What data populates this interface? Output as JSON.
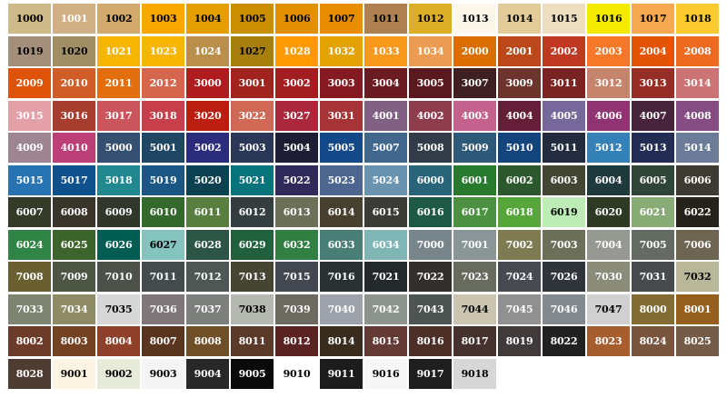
{
  "swatches": [
    {
      "code": "1000",
      "color": "#cdba88",
      "text": "#000000"
    },
    {
      "code": "1001",
      "color": "#d0b084",
      "text": "#ffffff"
    },
    {
      "code": "1002",
      "color": "#d2aa6d",
      "text": "#000000"
    },
    {
      "code": "1003",
      "color": "#f9a800",
      "text": "#000000"
    },
    {
      "code": "1004",
      "color": "#e49e00",
      "text": "#000000"
    },
    {
      "code": "1005",
      "color": "#cb8e00",
      "text": "#000000"
    },
    {
      "code": "1006",
      "color": "#e29000",
      "text": "#000000"
    },
    {
      "code": "1007",
      "color": "#e88c00",
      "text": "#000000"
    },
    {
      "code": "1011",
      "color": "#af8050",
      "text": "#000000"
    },
    {
      "code": "1012",
      "color": "#ddaf27",
      "text": "#000000"
    },
    {
      "code": "1013",
      "color": "#fbf7ea",
      "text": "#000000"
    },
    {
      "code": "1014",
      "color": "#e1cc99",
      "text": "#000000"
    },
    {
      "code": "1015",
      "color": "#eddec1",
      "text": "#000000"
    },
    {
      "code": "1016",
      "color": "#f4ea00",
      "text": "#000000"
    },
    {
      "code": "1017",
      "color": "#f6a950",
      "text": "#000000"
    },
    {
      "code": "1018",
      "color": "#faca30",
      "text": "#000000"
    },
    {
      "code": "1019",
      "color": "#a48f7a",
      "text": "#000000"
    },
    {
      "code": "1020",
      "color": "#a08f65",
      "text": "#000000"
    },
    {
      "code": "1021",
      "color": "#f6b600",
      "text": "#ffffff"
    },
    {
      "code": "1023",
      "color": "#f7b500",
      "text": "#ffffff"
    },
    {
      "code": "1024",
      "color": "#ba8f4c",
      "text": "#ffffff"
    },
    {
      "code": "1027",
      "color": "#a77f0e",
      "text": "#000000"
    },
    {
      "code": "1028",
      "color": "#ff9b00",
      "text": "#ffffff"
    },
    {
      "code": "1032",
      "color": "#e2a300",
      "text": "#ffffff"
    },
    {
      "code": "1033",
      "color": "#f99a1c",
      "text": "#ffffff"
    },
    {
      "code": "1034",
      "color": "#eb9c52",
      "text": "#ffffff"
    },
    {
      "code": "2000",
      "color": "#da6e00",
      "text": "#ffffff"
    },
    {
      "code": "2001",
      "color": "#ba481b",
      "text": "#ffffff"
    },
    {
      "code": "2002",
      "color": "#bf3922",
      "text": "#ffffff"
    },
    {
      "code": "2003",
      "color": "#f67828",
      "text": "#ffffff"
    },
    {
      "code": "2004",
      "color": "#e25303",
      "text": "#ffffff"
    },
    {
      "code": "2008",
      "color": "#ed6b21",
      "text": "#ffffff"
    },
    {
      "code": "2009",
      "color": "#de5307",
      "text": "#ffffff"
    },
    {
      "code": "2010",
      "color": "#d05d28",
      "text": "#ffffff"
    },
    {
      "code": "2011",
      "color": "#e26e0e",
      "text": "#ffffff"
    },
    {
      "code": "2012",
      "color": "#d5654d",
      "text": "#ffffff"
    },
    {
      "code": "3000",
      "color": "#af1c1f",
      "text": "#ffffff"
    },
    {
      "code": "3001",
      "color": "#a2231d",
      "text": "#ffffff"
    },
    {
      "code": "3002",
      "color": "#a21d1f",
      "text": "#ffffff"
    },
    {
      "code": "3003",
      "color": "#861a22",
      "text": "#ffffff"
    },
    {
      "code": "3004",
      "color": "#6b1c23",
      "text": "#ffffff"
    },
    {
      "code": "3005",
      "color": "#59191f",
      "text": "#ffffff"
    },
    {
      "code": "3007",
      "color": "#3e2022",
      "text": "#ffffff"
    },
    {
      "code": "3009",
      "color": "#6d342d",
      "text": "#ffffff"
    },
    {
      "code": "3011",
      "color": "#792423",
      "text": "#ffffff"
    },
    {
      "code": "3012",
      "color": "#c6846d",
      "text": "#ffffff"
    },
    {
      "code": "3013",
      "color": "#972e25",
      "text": "#ffffff"
    },
    {
      "code": "3014",
      "color": "#cb7375",
      "text": "#ffffff"
    },
    {
      "code": "3015",
      "color": "#e4a0a7",
      "text": "#ffffff"
    },
    {
      "code": "3016",
      "color": "#a63d2f",
      "text": "#ffffff"
    },
    {
      "code": "3017",
      "color": "#cb555d",
      "text": "#ffffff"
    },
    {
      "code": "3018",
      "color": "#c73f4a",
      "text": "#ffffff"
    },
    {
      "code": "3020",
      "color": "#bb1e10",
      "text": "#ffffff"
    },
    {
      "code": "3022",
      "color": "#cf6955",
      "text": "#ffffff"
    },
    {
      "code": "3027",
      "color": "#ab273c",
      "text": "#ffffff"
    },
    {
      "code": "3031",
      "color": "#a63437",
      "text": "#ffffff"
    },
    {
      "code": "4001",
      "color": "#816183",
      "text": "#ffffff"
    },
    {
      "code": "4002",
      "color": "#8d3c4b",
      "text": "#ffffff"
    },
    {
      "code": "4003",
      "color": "#c4618c",
      "text": "#ffffff"
    },
    {
      "code": "4004",
      "color": "#651e38",
      "text": "#ffffff"
    },
    {
      "code": "4005",
      "color": "#76689a",
      "text": "#ffffff"
    },
    {
      "code": "4006",
      "color": "#903373",
      "text": "#ffffff"
    },
    {
      "code": "4007",
      "color": "#47243c",
      "text": "#ffffff"
    },
    {
      "code": "4008",
      "color": "#844c82",
      "text": "#ffffff"
    },
    {
      "code": "4009",
      "color": "#9d8692",
      "text": "#ffffff"
    },
    {
      "code": "4010",
      "color": "#bc4077",
      "text": "#ffffff"
    },
    {
      "code": "5000",
      "color": "#344f6f",
      "text": "#ffffff"
    },
    {
      "code": "5001",
      "color": "#1f4764",
      "text": "#ffffff"
    },
    {
      "code": "5002",
      "color": "#2b2c7c",
      "text": "#ffffff"
    },
    {
      "code": "5003",
      "color": "#2a3756",
      "text": "#ffffff"
    },
    {
      "code": "5004",
      "color": "#1d1e33",
      "text": "#ffffff"
    },
    {
      "code": "5005",
      "color": "#154889",
      "text": "#ffffff"
    },
    {
      "code": "5007",
      "color": "#41678d",
      "text": "#ffffff"
    },
    {
      "code": "5008",
      "color": "#313c48",
      "text": "#ffffff"
    },
    {
      "code": "5009",
      "color": "#2e5978",
      "text": "#ffffff"
    },
    {
      "code": "5010",
      "color": "#13447c",
      "text": "#ffffff"
    },
    {
      "code": "5011",
      "color": "#232c3f",
      "text": "#ffffff"
    },
    {
      "code": "5012",
      "color": "#3481b8",
      "text": "#ffffff"
    },
    {
      "code": "5013",
      "color": "#232d53",
      "text": "#ffffff"
    },
    {
      "code": "5014",
      "color": "#6c7c98",
      "text": "#ffffff"
    },
    {
      "code": "5015",
      "color": "#2874b2",
      "text": "#ffffff"
    },
    {
      "code": "5017",
      "color": "#0e518d",
      "text": "#ffffff"
    },
    {
      "code": "5018",
      "color": "#21888f",
      "text": "#ffffff"
    },
    {
      "code": "5019",
      "color": "#1a5784",
      "text": "#ffffff"
    },
    {
      "code": "5020",
      "color": "#0b4151",
      "text": "#ffffff"
    },
    {
      "code": "5021",
      "color": "#07737a",
      "text": "#ffffff"
    },
    {
      "code": "5022",
      "color": "#2f2a5a",
      "text": "#ffffff"
    },
    {
      "code": "5023",
      "color": "#4d668e",
      "text": "#ffffff"
    },
    {
      "code": "5024",
      "color": "#6a93b0",
      "text": "#ffffff"
    },
    {
      "code": "6000",
      "color": "#296478",
      "text": "#ffffff"
    },
    {
      "code": "6001",
      "color": "#287b2e",
      "text": "#ffffff"
    },
    {
      "code": "6002",
      "color": "#2d572c",
      "text": "#ffffff"
    },
    {
      "code": "6003",
      "color": "#424632",
      "text": "#ffffff"
    },
    {
      "code": "6004",
      "color": "#1f3a3d",
      "text": "#ffffff"
    },
    {
      "code": "6005",
      "color": "#2f4538",
      "text": "#ffffff"
    },
    {
      "code": "6006",
      "color": "#3e3b32",
      "text": "#ffffff"
    },
    {
      "code": "6007",
      "color": "#343b29",
      "text": "#ffffff"
    },
    {
      "code": "6008",
      "color": "#39352a",
      "text": "#ffffff"
    },
    {
      "code": "6009",
      "color": "#31372b",
      "text": "#ffffff"
    },
    {
      "code": "6010",
      "color": "#35682d",
      "text": "#ffffff"
    },
    {
      "code": "6011",
      "color": "#587f40",
      "text": "#ffffff"
    },
    {
      "code": "6012",
      "color": "#343e40",
      "text": "#ffffff"
    },
    {
      "code": "6013",
      "color": "#6c7059",
      "text": "#ffffff"
    },
    {
      "code": "6014",
      "color": "#47402e",
      "text": "#ffffff"
    },
    {
      "code": "6015",
      "color": "#3b3c36",
      "text": "#ffffff"
    },
    {
      "code": "6016",
      "color": "#1e5945",
      "text": "#ffffff"
    },
    {
      "code": "6017",
      "color": "#4c9141",
      "text": "#ffffff"
    },
    {
      "code": "6018",
      "color": "#57a639",
      "text": "#ffffff"
    },
    {
      "code": "6019",
      "color": "#bdecb6",
      "text": "#000000"
    },
    {
      "code": "6020",
      "color": "#2e3a23",
      "text": "#ffffff"
    },
    {
      "code": "6021",
      "color": "#89ac76",
      "text": "#ffffff"
    },
    {
      "code": "6022",
      "color": "#25221b",
      "text": "#ffffff"
    },
    {
      "code": "6024",
      "color": "#308446",
      "text": "#ffffff"
    },
    {
      "code": "6025",
      "color": "#3d642d",
      "text": "#ffffff"
    },
    {
      "code": "6026",
      "color": "#015d52",
      "text": "#ffffff"
    },
    {
      "code": "6027",
      "color": "#84c3be",
      "text": "#000000"
    },
    {
      "code": "6028",
      "color": "#2c5545",
      "text": "#ffffff"
    },
    {
      "code": "6029",
      "color": "#20603d",
      "text": "#ffffff"
    },
    {
      "code": "6032",
      "color": "#317f43",
      "text": "#ffffff"
    },
    {
      "code": "6033",
      "color": "#497e76",
      "text": "#ffffff"
    },
    {
      "code": "6034",
      "color": "#7fb5b5",
      "text": "#ffffff"
    },
    {
      "code": "7000",
      "color": "#78858b",
      "text": "#ffffff"
    },
    {
      "code": "7001",
      "color": "#8a9597",
      "text": "#ffffff"
    },
    {
      "code": "7002",
      "color": "#7e7b52",
      "text": "#ffffff"
    },
    {
      "code": "7003",
      "color": "#6c7059",
      "text": "#ffffff"
    },
    {
      "code": "7004",
      "color": "#969992",
      "text": "#ffffff"
    },
    {
      "code": "7005",
      "color": "#646b63",
      "text": "#ffffff"
    },
    {
      "code": "7006",
      "color": "#6d6552",
      "text": "#ffffff"
    },
    {
      "code": "7008",
      "color": "#6a5f31",
      "text": "#ffffff"
    },
    {
      "code": "7009",
      "color": "#4d5645",
      "text": "#ffffff"
    },
    {
      "code": "7010",
      "color": "#4c514a",
      "text": "#ffffff"
    },
    {
      "code": "7011",
      "color": "#434b4d",
      "text": "#ffffff"
    },
    {
      "code": "7012",
      "color": "#4e5754",
      "text": "#ffffff"
    },
    {
      "code": "7013",
      "color": "#464531",
      "text": "#ffffff"
    },
    {
      "code": "7015",
      "color": "#434750",
      "text": "#ffffff"
    },
    {
      "code": "7016",
      "color": "#293133",
      "text": "#ffffff"
    },
    {
      "code": "7021",
      "color": "#23282b",
      "text": "#ffffff"
    },
    {
      "code": "7022",
      "color": "#332f2c",
      "text": "#ffffff"
    },
    {
      "code": "7023",
      "color": "#686c5e",
      "text": "#ffffff"
    },
    {
      "code": "7024",
      "color": "#474a51",
      "text": "#ffffff"
    },
    {
      "code": "7026",
      "color": "#2f353b",
      "text": "#ffffff"
    },
    {
      "code": "7030",
      "color": "#8b8c7a",
      "text": "#ffffff"
    },
    {
      "code": "7031",
      "color": "#474b4e",
      "text": "#ffffff"
    },
    {
      "code": "7032",
      "color": "#b8b799",
      "text": "#000000"
    },
    {
      "code": "7033",
      "color": "#7d8471",
      "text": "#ffffff"
    },
    {
      "code": "7034",
      "color": "#8f8b66",
      "text": "#ffffff"
    },
    {
      "code": "7035",
      "color": "#d7d7d7",
      "text": "#000000"
    },
    {
      "code": "7036",
      "color": "#7f7679",
      "text": "#ffffff"
    },
    {
      "code": "7037",
      "color": "#7d7f7d",
      "text": "#ffffff"
    },
    {
      "code": "7038",
      "color": "#b5b8b1",
      "text": "#000000"
    },
    {
      "code": "7039",
      "color": "#6c6960",
      "text": "#ffffff"
    },
    {
      "code": "7040",
      "color": "#9da1aa",
      "text": "#ffffff"
    },
    {
      "code": "7042",
      "color": "#8d948d",
      "text": "#ffffff"
    },
    {
      "code": "7043",
      "color": "#4e5452",
      "text": "#ffffff"
    },
    {
      "code": "7044",
      "color": "#cac4b0",
      "text": "#000000"
    },
    {
      "code": "7045",
      "color": "#909090",
      "text": "#ffffff"
    },
    {
      "code": "7046",
      "color": "#82898f",
      "text": "#ffffff"
    },
    {
      "code": "7047",
      "color": "#d0d0d0",
      "text": "#000000"
    },
    {
      "code": "8000",
      "color": "#826c34",
      "text": "#ffffff"
    },
    {
      "code": "8001",
      "color": "#955f20",
      "text": "#ffffff"
    },
    {
      "code": "8002",
      "color": "#6c3b2a",
      "text": "#ffffff"
    },
    {
      "code": "8003",
      "color": "#734222",
      "text": "#ffffff"
    },
    {
      "code": "8004",
      "color": "#8e402a",
      "text": "#ffffff"
    },
    {
      "code": "8007",
      "color": "#59351f",
      "text": "#ffffff"
    },
    {
      "code": "8008",
      "color": "#6f4f28",
      "text": "#ffffff"
    },
    {
      "code": "8011",
      "color": "#5b3a29",
      "text": "#ffffff"
    },
    {
      "code": "8012",
      "color": "#592321",
      "text": "#ffffff"
    },
    {
      "code": "8014",
      "color": "#382c1e",
      "text": "#ffffff"
    },
    {
      "code": "8015",
      "color": "#633a34",
      "text": "#ffffff"
    },
    {
      "code": "8016",
      "color": "#4c2f27",
      "text": "#ffffff"
    },
    {
      "code": "8017",
      "color": "#45322e",
      "text": "#ffffff"
    },
    {
      "code": "8019",
      "color": "#403a3a",
      "text": "#ffffff"
    },
    {
      "code": "8022",
      "color": "#212121",
      "text": "#ffffff"
    },
    {
      "code": "8023",
      "color": "#a65e2e",
      "text": "#ffffff"
    },
    {
      "code": "8024",
      "color": "#79553d",
      "text": "#ffffff"
    },
    {
      "code": "8025",
      "color": "#755c48",
      "text": "#ffffff"
    },
    {
      "code": "8028",
      "color": "#4e3b31",
      "text": "#ffffff"
    },
    {
      "code": "9001",
      "color": "#fdf4e3",
      "text": "#000000"
    },
    {
      "code": "9002",
      "color": "#e7ebda",
      "text": "#000000"
    },
    {
      "code": "9003",
      "color": "#f4f4f4",
      "text": "#000000"
    },
    {
      "code": "9004",
      "color": "#282828",
      "text": "#ffffff"
    },
    {
      "code": "9005",
      "color": "#0a0a0a",
      "text": "#ffffff"
    },
    {
      "code": "9010",
      "color": "#ffffff",
      "text": "#000000"
    },
    {
      "code": "9011",
      "color": "#1c1c1c",
      "text": "#ffffff"
    },
    {
      "code": "9016",
      "color": "#f6f6f6",
      "text": "#000000"
    },
    {
      "code": "9017",
      "color": "#1e1e1e",
      "text": "#ffffff"
    },
    {
      "code": "9018",
      "color": "#d7d7d7",
      "text": "#000000"
    }
  ]
}
